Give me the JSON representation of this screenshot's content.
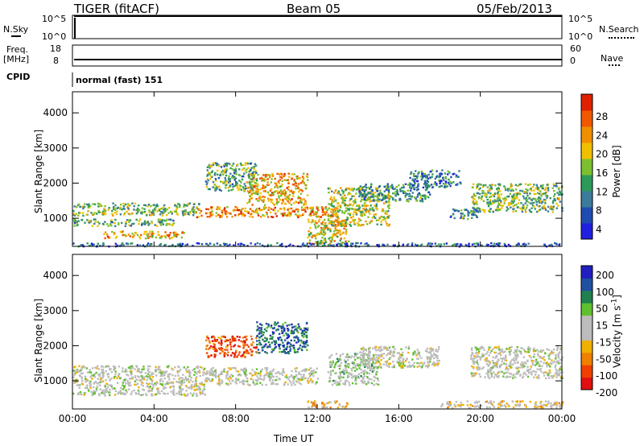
{
  "header": {
    "radar": "TIGER (fitACF)",
    "beam": "Beam 05",
    "date": "05/Feb/2013"
  },
  "nsky_panel": {
    "left_label": "N.Sky",
    "right_label": "N.Search",
    "left_ticks": [
      "10^5",
      "10^0"
    ],
    "right_ticks": [
      "10^5",
      "10^0"
    ]
  },
  "freq_panel": {
    "left_label_1": "Freq.",
    "left_label_2": "[MHz]",
    "right_label": "Nave",
    "left_ticks": [
      "18",
      "8"
    ],
    "right_ticks": [
      "60",
      "0"
    ]
  },
  "cpid_panel": {
    "label": "CPID",
    "value": "normal (fast) 151"
  },
  "chart_data": [
    {
      "type": "heatmap",
      "title": "",
      "xlabel": "Time UT",
      "ylabel": "Slant Range [km]",
      "x_ticks": [
        "00:00",
        "04:00",
        "08:00",
        "12:00",
        "16:00",
        "20:00",
        "00:00"
      ],
      "xlim": [
        0,
        24
      ],
      "ylim": [
        200,
        4600
      ],
      "y_ticks": [
        "1000",
        "2000",
        "3000",
        "4000"
      ],
      "colorbar": {
        "label": "Power [dB]",
        "ticks": [
          "28",
          "24",
          "20",
          "16",
          "12",
          "8",
          "4"
        ],
        "range": [
          0,
          30
        ],
        "colors": [
          "#2020e0",
          "#204cb0",
          "#3c7c9a",
          "#2e9a5a",
          "#7cc030",
          "#f0c000",
          "#f09000",
          "#f05800",
          "#e02000"
        ]
      },
      "bands": [
        {
          "t0": 0,
          "t1": 6.2,
          "r0": 1100,
          "r1": 1450,
          "level": 14
        },
        {
          "t0": 0,
          "t1": 5.0,
          "r0": 800,
          "r1": 1000,
          "level": 13
        },
        {
          "t0": 1.5,
          "t1": 5.5,
          "r0": 450,
          "r1": 650,
          "level": 20
        },
        {
          "t0": 6.0,
          "t1": 13.0,
          "r0": 1050,
          "r1": 1350,
          "level": 22
        },
        {
          "t0": 8.5,
          "t1": 11.5,
          "r0": 1400,
          "r1": 2300,
          "level": 20
        },
        {
          "t0": 6.5,
          "t1": 9.0,
          "r0": 1800,
          "r1": 2600,
          "level": 12
        },
        {
          "t0": 11.5,
          "t1": 13.5,
          "r0": 300,
          "r1": 1000,
          "level": 18
        },
        {
          "t0": 12.5,
          "t1": 15.5,
          "r0": 800,
          "r1": 1900,
          "level": 16
        },
        {
          "t0": 14.0,
          "t1": 17.5,
          "r0": 1500,
          "r1": 2000,
          "level": 10
        },
        {
          "t0": 16.5,
          "t1": 19.0,
          "r0": 1900,
          "r1": 2400,
          "level": 8
        },
        {
          "t0": 19.5,
          "t1": 24.0,
          "r0": 1200,
          "r1": 2000,
          "level": 14
        },
        {
          "t0": 18.5,
          "t1": 19.8,
          "r0": 1000,
          "r1": 1300,
          "level": 10
        },
        {
          "t0": 0,
          "t1": 24.0,
          "r0": 220,
          "r1": 320,
          "level": 6
        }
      ]
    },
    {
      "type": "heatmap",
      "title": "",
      "xlabel": "Time UT",
      "ylabel": "Slant Range [km]",
      "x_ticks": [
        "00:00",
        "04:00",
        "08:00",
        "12:00",
        "16:00",
        "20:00",
        "00:00"
      ],
      "xlim": [
        0,
        24
      ],
      "ylim": [
        200,
        4600
      ],
      "y_ticks": [
        "1000",
        "2000",
        "3000",
        "4000"
      ],
      "colorbar": {
        "label": "Velocity [m s^-1]",
        "ticks": [
          "200",
          "100",
          "50",
          "15",
          "-15",
          "-50",
          "-100",
          "-200"
        ],
        "range": [
          -250,
          250
        ],
        "colors": [
          "#e01010",
          "#f04000",
          "#f08000",
          "#f0b000",
          "#bcbcbc",
          "#bcbcbc",
          "#60c030",
          "#208050",
          "#2050a0",
          "#2020c0"
        ]
      },
      "bands": [
        {
          "t0": 0,
          "t1": 6.5,
          "r0": 600,
          "r1": 1450,
          "level": 0
        },
        {
          "t0": 6.5,
          "t1": 12.0,
          "r0": 900,
          "r1": 1400,
          "level": 0
        },
        {
          "t0": 6.5,
          "t1": 9.0,
          "r0": 1700,
          "r1": 2300,
          "level": -160
        },
        {
          "t0": 9.0,
          "t1": 11.5,
          "r0": 1800,
          "r1": 2700,
          "level": 150
        },
        {
          "t0": 12.5,
          "t1": 15.0,
          "r0": 900,
          "r1": 1800,
          "level": 40
        },
        {
          "t0": 14.0,
          "t1": 18.0,
          "r0": 1400,
          "r1": 2000,
          "level": 0
        },
        {
          "t0": 19.5,
          "t1": 24.0,
          "r0": 1100,
          "r1": 2000,
          "level": 0
        },
        {
          "t0": 11.5,
          "t1": 13.5,
          "r0": 250,
          "r1": 450,
          "level": -80
        },
        {
          "t0": 18.0,
          "t1": 24.0,
          "r0": 250,
          "r1": 450,
          "level": -40
        }
      ]
    }
  ]
}
